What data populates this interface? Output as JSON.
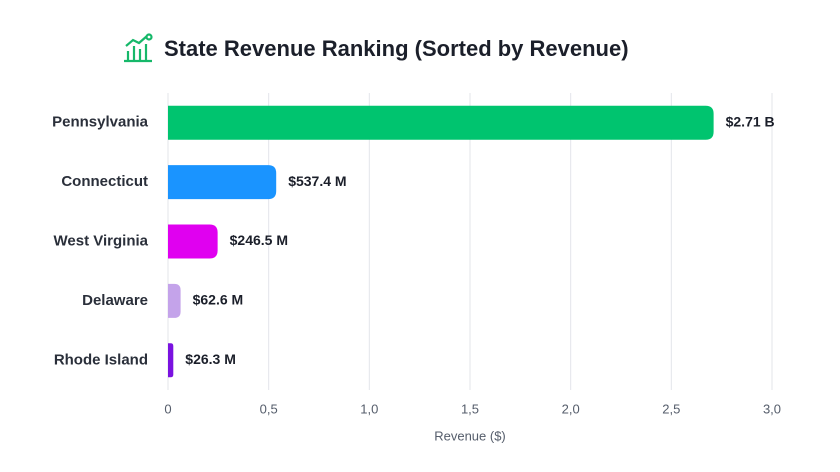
{
  "chart_data": {
    "type": "bar",
    "orientation": "horizontal",
    "title": "State Revenue Ranking (Sorted by Revenue)",
    "xlabel": "Revenue ($)",
    "categories": [
      "Pennsylvania",
      "Connecticut",
      "West Virginia",
      "Delaware",
      "Rhode Island"
    ],
    "values": [
      2.71,
      0.5374,
      0.2465,
      0.0626,
      0.0263
    ],
    "value_labels": [
      "$2.71 B",
      "$537.4 M",
      "$246.5 M",
      "$62.6 M",
      "$26.3 M"
    ],
    "colors": [
      "#00c46f",
      "#1a94ff",
      "#e000f0",
      "#c4a3ea",
      "#7a12e0"
    ],
    "xlim": [
      0,
      3.0
    ],
    "xticks": [
      0,
      {
        "value": 0.5,
        "label": "0,5"
      },
      {
        "value": 1.0,
        "label": "1,0"
      },
      {
        "value": 1.5,
        "label": "1,5"
      },
      {
        "value": 2.0,
        "label": "2,0"
      },
      {
        "value": 2.5,
        "label": "2,5"
      },
      {
        "value": 3.0,
        "label": "3,0"
      }
    ],
    "grid": true
  }
}
